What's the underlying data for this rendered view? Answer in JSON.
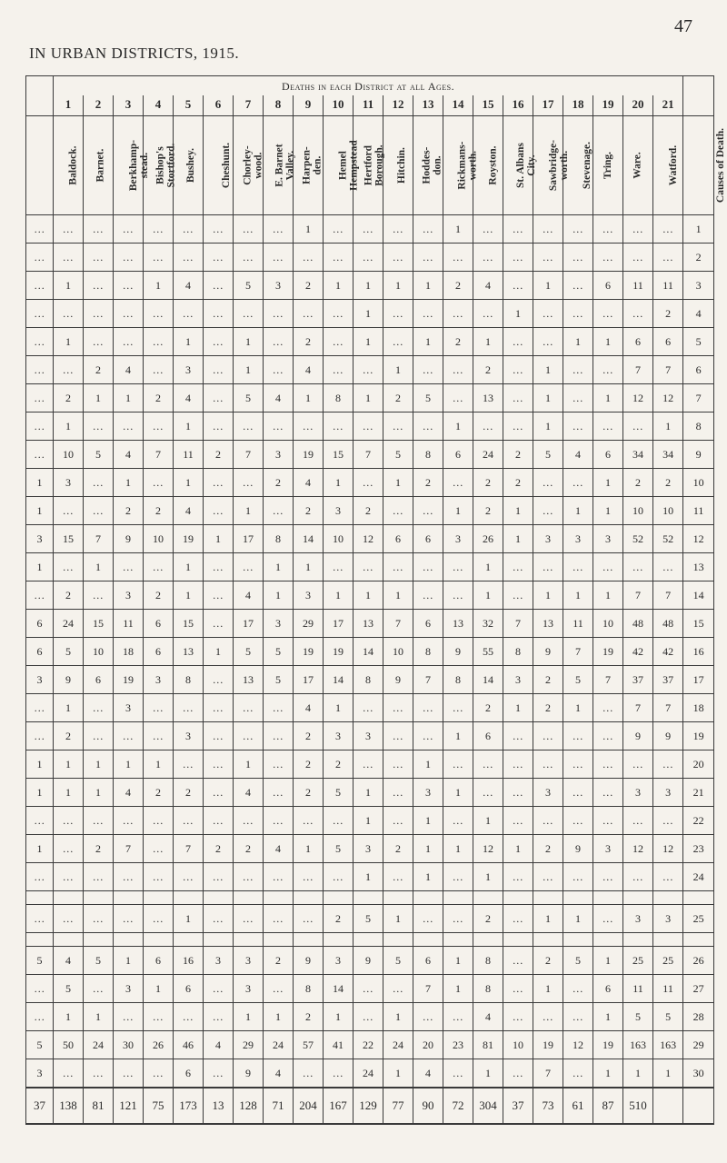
{
  "page_number": "47",
  "title_line": "IN URBAN DISTRICTS, 1915.",
  "caption": "Deaths in each District at all Ages.",
  "column_numbers": [
    "",
    "1",
    "2",
    "3",
    "4",
    "5",
    "6",
    "7",
    "8",
    "9",
    "10",
    "11",
    "12",
    "13",
    "14",
    "15",
    "16",
    "17",
    "18",
    "19",
    "20",
    "21",
    ""
  ],
  "column_labels": [
    "",
    "Baldock.",
    "Barnet.",
    "Berkhamp-\nstead.",
    "Bishop's\nStortford.",
    "Bushey.",
    "Cheshunt.",
    "Chorley-\nwood.",
    "E. Barnet\nValley.",
    "Harpen-\nden.",
    "Hemel\nHempstead",
    "Hertford\nBorough.",
    "Hitchin.",
    "Hoddes-\ndon.",
    "Rickmans-\nworth.",
    "Royston.",
    "St. Albans\nCity.",
    "Sawbridge-\nworth.",
    "Stevenage.",
    "Tring.",
    "Ware.",
    "Watford.",
    "Causes of Death."
  ],
  "ellipsis": "…",
  "rows": [
    [
      "",
      "",
      "",
      "",
      "",
      "",
      "",
      "",
      "",
      "1",
      "",
      "",
      "",
      "",
      "1",
      "",
      "",
      "",
      "",
      "",
      "",
      "",
      "1"
    ],
    [
      "",
      "",
      "",
      "",
      "",
      "",
      "",
      "",
      "",
      "",
      "",
      "",
      "",
      "",
      "",
      "",
      "",
      "",
      "",
      "",
      "",
      "",
      "2"
    ],
    [
      "",
      "1",
      "",
      "",
      "1",
      "4",
      "",
      "5",
      "3",
      "2",
      "1",
      "1",
      "1",
      "1",
      "2",
      "4",
      "",
      "1",
      "",
      "6",
      "11",
      "3"
    ],
    [
      "",
      "",
      "",
      "",
      "",
      "",
      "",
      "",
      "",
      "",
      "",
      "1",
      "",
      "",
      "",
      "",
      "1",
      "",
      "",
      "",
      "",
      "2",
      "4"
    ],
    [
      "",
      "1",
      "",
      "",
      "",
      "1",
      "",
      "1",
      "",
      "2",
      "",
      "1",
      "",
      "1",
      "2",
      "1",
      "",
      "",
      "1",
      "1",
      "6",
      "5"
    ],
    [
      "",
      "",
      "2",
      "4",
      "",
      "3",
      "",
      "1",
      "",
      "4",
      "",
      "",
      "1",
      "",
      "",
      "2",
      "",
      "1",
      "",
      "",
      "7",
      "6"
    ],
    [
      "",
      "2",
      "1",
      "1",
      "2",
      "4",
      "",
      "5",
      "4",
      "1",
      "8",
      "1",
      "2",
      "5",
      "",
      "13",
      "",
      "1",
      "",
      "1",
      "12",
      "7"
    ],
    [
      "",
      "1",
      "",
      "",
      "",
      "1",
      "",
      "",
      "",
      "",
      "",
      "",
      "",
      "",
      "1",
      "",
      "",
      "1",
      "",
      "",
      "",
      "1",
      "8"
    ],
    [
      "",
      "10",
      "5",
      "4",
      "7",
      "11",
      "2",
      "7",
      "3",
      "19",
      "15",
      "7",
      "5",
      "8",
      "6",
      "24",
      "2",
      "5",
      "4",
      "6",
      "34",
      "9"
    ],
    [
      "1",
      "3",
      "",
      "1",
      "",
      "1",
      "",
      "",
      "2",
      "4",
      "1",
      "",
      "1",
      "2",
      "",
      "2",
      "2",
      "",
      "",
      "1",
      "2",
      "10"
    ],
    [
      "1",
      "",
      "",
      "2",
      "2",
      "4",
      "",
      "1",
      "",
      "2",
      "3",
      "2",
      "",
      "",
      "1",
      "2",
      "1",
      "",
      "1",
      "1",
      "10",
      "11"
    ],
    [
      "3",
      "15",
      "7",
      "9",
      "10",
      "19",
      "1",
      "17",
      "8",
      "14",
      "10",
      "12",
      "6",
      "6",
      "3",
      "26",
      "1",
      "3",
      "3",
      "3",
      "52",
      "12"
    ],
    [
      "1",
      "",
      "1",
      "",
      "",
      "1",
      "",
      "",
      "1",
      "1",
      "",
      "",
      "",
      "",
      "",
      "1",
      "",
      "",
      "",
      "",
      "",
      "13"
    ],
    [
      "",
      "2",
      "",
      "3",
      "2",
      "1",
      "",
      "4",
      "1",
      "3",
      "1",
      "1",
      "1",
      "",
      "",
      "1",
      "",
      "1",
      "1",
      "1",
      "7",
      "14"
    ],
    [
      "6",
      "24",
      "15",
      "11",
      "6",
      "15",
      "",
      "17",
      "3",
      "29",
      "17",
      "13",
      "7",
      "6",
      "13",
      "32",
      "7",
      "13",
      "11",
      "10",
      "48",
      "15"
    ],
    [
      "6",
      "5",
      "10",
      "18",
      "6",
      "13",
      "1",
      "5",
      "5",
      "19",
      "19",
      "14",
      "10",
      "8",
      "9",
      "55",
      "8",
      "9",
      "7",
      "19",
      "42",
      "16"
    ],
    [
      "3",
      "9",
      "6",
      "19",
      "3",
      "8",
      "",
      "13",
      "5",
      "17",
      "14",
      "8",
      "9",
      "7",
      "8",
      "14",
      "3",
      "2",
      "5",
      "7",
      "37",
      "17"
    ],
    [
      "",
      "1",
      "",
      "3",
      "",
      "",
      "",
      "",
      "",
      "4",
      "1",
      "",
      "",
      "",
      "",
      "2",
      "1",
      "2",
      "1",
      "",
      "7",
      "18"
    ],
    [
      "",
      "2",
      "",
      "",
      "",
      "3",
      "",
      "",
      "",
      "2",
      "3",
      "3",
      "",
      "",
      "1",
      "6",
      "",
      "",
      "",
      "",
      "9",
      "19"
    ],
    [
      "1",
      "1",
      "1",
      "1",
      "1",
      "",
      "",
      "1",
      "",
      "2",
      "2",
      "",
      "",
      "1",
      "",
      "",
      "",
      "",
      "",
      "",
      "",
      "20"
    ],
    [
      "1",
      "1",
      "1",
      "4",
      "2",
      "2",
      "",
      "4",
      "",
      "2",
      "5",
      "1",
      "",
      "3",
      "1",
      "",
      "",
      "3",
      "",
      "",
      "3",
      "21"
    ],
    [
      "",
      "",
      "",
      "",
      "",
      "",
      "",
      "",
      "",
      "",
      "",
      "1",
      "",
      "1",
      "",
      "1",
      "",
      "",
      "",
      "",
      "",
      "22"
    ],
    [
      "1",
      "",
      "2",
      "7",
      "",
      "7",
      "2",
      "2",
      "4",
      "1",
      "5",
      "3",
      "2",
      "1",
      "1",
      "12",
      "1",
      "2",
      "9",
      "3",
      "12",
      "23"
    ],
    [
      "",
      "",
      "",
      "",
      "",
      "",
      "",
      "",
      "",
      "",
      "",
      "1",
      "",
      "1",
      "",
      "1",
      "",
      "",
      "",
      "",
      "",
      "24"
    ],
    [
      "SPACER"
    ],
    [
      "",
      "",
      "",
      "",
      "",
      "1",
      "",
      "",
      "",
      "",
      "2",
      "5",
      "1",
      "",
      "",
      "2",
      "",
      "1",
      "1",
      "",
      "3",
      "25"
    ],
    [
      "SPACER"
    ],
    [
      "5",
      "4",
      "5",
      "1",
      "6",
      "16",
      "3",
      "3",
      "2",
      "9",
      "3",
      "9",
      "5",
      "6",
      "1",
      "8",
      "",
      "2",
      "5",
      "1",
      "25",
      "26"
    ],
    [
      "",
      "5",
      "",
      "3",
      "1",
      "6",
      "",
      "3",
      "",
      "8",
      "14",
      "",
      "",
      "7",
      "1",
      "8",
      "",
      "1",
      "",
      "6",
      "11",
      "27"
    ],
    [
      "",
      "1",
      "1",
      "",
      "",
      "",
      "",
      "1",
      "1",
      "2",
      "1",
      "",
      "1",
      "",
      "",
      "4",
      "",
      "",
      "",
      "1",
      "5",
      "28"
    ],
    [
      "5",
      "50",
      "24",
      "30",
      "26",
      "46",
      "4",
      "29",
      "24",
      "57",
      "41",
      "22",
      "24",
      "20",
      "23",
      "81",
      "10",
      "19",
      "12",
      "19",
      "163",
      "29"
    ],
    [
      "3",
      "",
      "",
      "",
      "",
      "6",
      "",
      "9",
      "4",
      "",
      "",
      "24",
      "1",
      "4",
      "",
      "1",
      "",
      "7",
      "",
      "1",
      "1",
      "30"
    ]
  ],
  "totals": [
    "37",
    "138",
    "81",
    "121",
    "75",
    "173",
    "13",
    "128",
    "71",
    "204",
    "167",
    "129",
    "77",
    "90",
    "72",
    "304",
    "37",
    "73",
    "61",
    "87",
    "510",
    ""
  ]
}
